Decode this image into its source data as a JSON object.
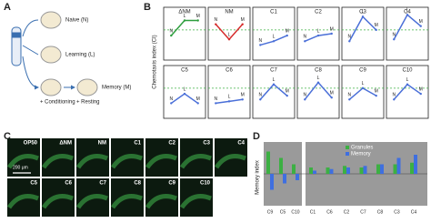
{
  "panel_letters": [
    "A",
    "B",
    "C",
    "D"
  ],
  "schematic": {
    "naive": "Naive (N)",
    "learning": "Learning (L)",
    "memory": "Memory (M)",
    "conditioning": "+ Conditioning",
    "resting": "+ Resting"
  },
  "chart_b": {
    "type": "line",
    "ylabel": "Chemotaxis index (CI)",
    "point_labels": [
      "N",
      "L",
      "M"
    ],
    "ylim": [
      -0.2,
      1.2
    ],
    "threshold": 0.6,
    "threshold_color": "#3cb043",
    "panels": [
      {
        "title": "ΔNM",
        "color": "#2e9e3e",
        "values": [
          0.45,
          0.85,
          0.85
        ]
      },
      {
        "title": "NM",
        "color": "#d62b2b",
        "values": [
          0.75,
          0.35,
          0.75
        ]
      },
      {
        "title": "C1",
        "color": "#4a6fd8",
        "values": [
          0.2,
          0.3,
          0.45
        ]
      },
      {
        "title": "C2",
        "color": "#4a6fd8",
        "values": [
          0.3,
          0.45,
          0.5
        ]
      },
      {
        "title": "C3",
        "color": "#4a6fd8",
        "values": [
          0.3,
          0.95,
          0.6
        ]
      },
      {
        "title": "C4",
        "color": "#4a6fd8",
        "values": [
          0.35,
          1.0,
          0.7
        ]
      },
      {
        "title": "C5",
        "color": "#4a6fd8",
        "values": [
          0.2,
          0.45,
          0.2
        ]
      },
      {
        "title": "C6",
        "color": "#4a6fd8",
        "values": [
          0.2,
          0.25,
          0.3
        ]
      },
      {
        "title": "C7",
        "color": "#4a6fd8",
        "values": [
          0.3,
          0.7,
          0.4
        ]
      },
      {
        "title": "C8",
        "color": "#4a6fd8",
        "values": [
          0.3,
          0.75,
          0.35
        ]
      },
      {
        "title": "C9",
        "color": "#4a6fd8",
        "values": [
          0.3,
          0.6,
          0.4
        ]
      },
      {
        "title": "C10",
        "color": "#4a6fd8",
        "values": [
          0.3,
          0.7,
          0.45
        ]
      }
    ]
  },
  "images_c": {
    "strains": [
      "OP50",
      "ΔNM",
      "NM",
      "C1",
      "C2",
      "C3",
      "C4",
      "C5",
      "C6",
      "C7",
      "C8",
      "C9",
      "C10"
    ],
    "scale_bar": "200 μm"
  },
  "chart_d": {
    "type": "bar",
    "ylabel": "Memory index",
    "ylim": [
      -1,
      1
    ],
    "categories": [
      "C9",
      "C5",
      "C10",
      "C1",
      "C6",
      "C2",
      "C7",
      "C8",
      "C3",
      "C4"
    ],
    "series": [
      {
        "name": "Granules",
        "color": "#3cb043",
        "values": [
          0.7,
          0.5,
          0.3,
          0.2,
          0.2,
          0.25,
          0.2,
          0.3,
          0.3,
          0.35
        ]
      },
      {
        "name": "Memory",
        "color": "#3f6fe0",
        "values": [
          -0.5,
          -0.3,
          -0.2,
          0.1,
          0.15,
          0.2,
          0.25,
          0.3,
          0.5,
          0.6
        ]
      }
    ]
  }
}
